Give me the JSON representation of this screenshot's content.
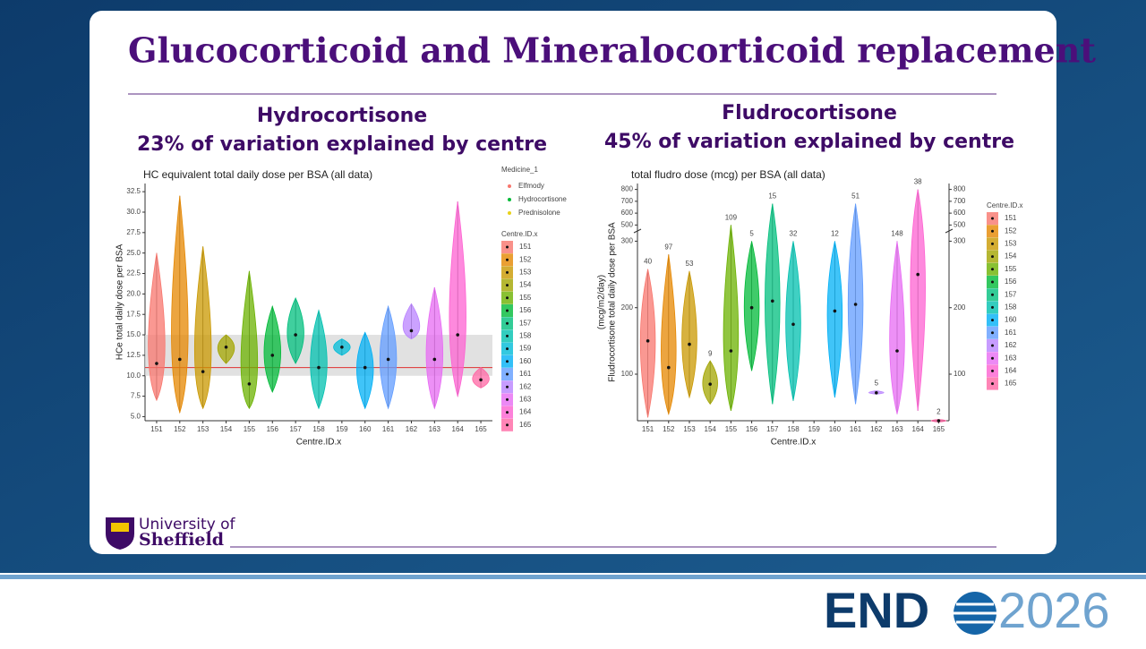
{
  "slide": {
    "title": "Glucocorticoid and Mineralocorticoid replacement",
    "left_heading": [
      "Hydrocortisone",
      "23% of variation explained by centre"
    ],
    "right_heading": [
      "Fludrocortisone",
      "45% of variation explained by centre"
    ],
    "university": [
      "University of",
      "Sheffield"
    ],
    "endo_logo": [
      "END",
      "2026"
    ]
  },
  "chart_data": [
    {
      "type": "violin",
      "title": "HC equivalent total daily dose per BSA (all data)",
      "x_label": "Centre.ID.x",
      "y_label": [
        "HCe total daily dose per BSA"
      ],
      "categories": [
        "151",
        "152",
        "153",
        "154",
        "155",
        "156",
        "157",
        "158",
        "159",
        "160",
        "161",
        "162",
        "163",
        "164",
        "165"
      ],
      "colors": [
        "#F8766D",
        "#E58700",
        "#C99800",
        "#A3A500",
        "#6BB100",
        "#00BA38",
        "#00BF7D",
        "#00C0AF",
        "#00BCD8",
        "#00B0F6",
        "#619CFF",
        "#B983FF",
        "#E76BF3",
        "#FD61D1",
        "#FF67A4"
      ],
      "min": [
        7,
        5.5,
        6,
        11.5,
        6,
        8,
        11.5,
        6,
        12.5,
        6,
        6,
        14.5,
        6,
        7.5,
        8.5
      ],
      "median": [
        11.5,
        12,
        10.5,
        13.5,
        9,
        12.5,
        15,
        11,
        13.5,
        11,
        12,
        15.5,
        12,
        15,
        9.5
      ],
      "max": [
        25,
        32,
        25.8,
        15,
        22.8,
        18.5,
        19.5,
        18,
        14.5,
        15.3,
        18.5,
        18.8,
        20.8,
        31.3,
        11
      ],
      "ylim": [
        4.5,
        33.5
      ],
      "yticks": [
        {
          "value": 5,
          "label": "5.0"
        },
        7.5,
        {
          "value": 10,
          "label": "10.0"
        },
        12.5,
        {
          "value": 15,
          "label": "15.0"
        },
        17.5,
        {
          "value": 20,
          "label": "20.0"
        },
        22.5,
        {
          "value": 25,
          "label": "25.0"
        },
        27.5,
        {
          "value": 30,
          "label": "30.0"
        },
        32.5
      ],
      "band": [
        10,
        15
      ],
      "band_color": "#d9d9d9",
      "reference_line": 11,
      "reference_color": "#e03030",
      "legend_medicine": {
        "title": "Medicine_1",
        "entries": [
          {
            "name": "Elfmody",
            "color": "#F8766D"
          },
          {
            "name": "Hydrocortisone",
            "color": "#00BA38"
          },
          {
            "name": "Prednisolone",
            "color": "#E8D21A"
          }
        ]
      },
      "legend_title": "Centre.ID.x"
    },
    {
      "type": "violin",
      "title": "total fludro dose (mcg) per BSA (all data)",
      "x_label": "Centre.ID.x",
      "y_label": [
        "Fludrocortisone total daily dose per BSA",
        "(mcg/m2/day)"
      ],
      "categories": [
        "151",
        "152",
        "153",
        "154",
        "155",
        "156",
        "157",
        "158",
        "159",
        "160",
        "161",
        "162",
        "163",
        "164",
        "165"
      ],
      "colors": [
        "#F8766D",
        "#E58700",
        "#C99800",
        "#A3A500",
        "#6BB100",
        "#00BA38",
        "#00BF7D",
        "#00C0AF",
        "#00BCD8",
        "#00B0F6",
        "#619CFF",
        "#B983FF",
        "#E76BF3",
        "#FD61D1",
        "#FF67A4"
      ],
      "min": [
        35,
        40,
        65,
        55,
        45,
        105,
        55,
        60,
        null,
        65,
        55,
        70,
        40,
        45,
        28
      ],
      "median": [
        150,
        110,
        145,
        85,
        135,
        200,
        210,
        175,
        null,
        195,
        205,
        72,
        135,
        250,
        30
      ],
      "max": [
        258,
        280,
        255,
        120,
        500,
        300,
        680,
        300,
        null,
        300,
        680,
        75,
        300,
        800,
        32
      ],
      "counts": [
        40,
        97,
        53,
        9,
        109,
        5,
        15,
        32,
        null,
        12,
        51,
        5,
        148,
        38,
        2
      ],
      "ylim": [
        30,
        850
      ],
      "axis_break": [
        310,
        480
      ],
      "yticks": [
        100,
        200,
        300,
        500,
        600,
        700,
        800
      ],
      "secondary_axis": true,
      "legend_title": "Centre.ID.x"
    }
  ]
}
